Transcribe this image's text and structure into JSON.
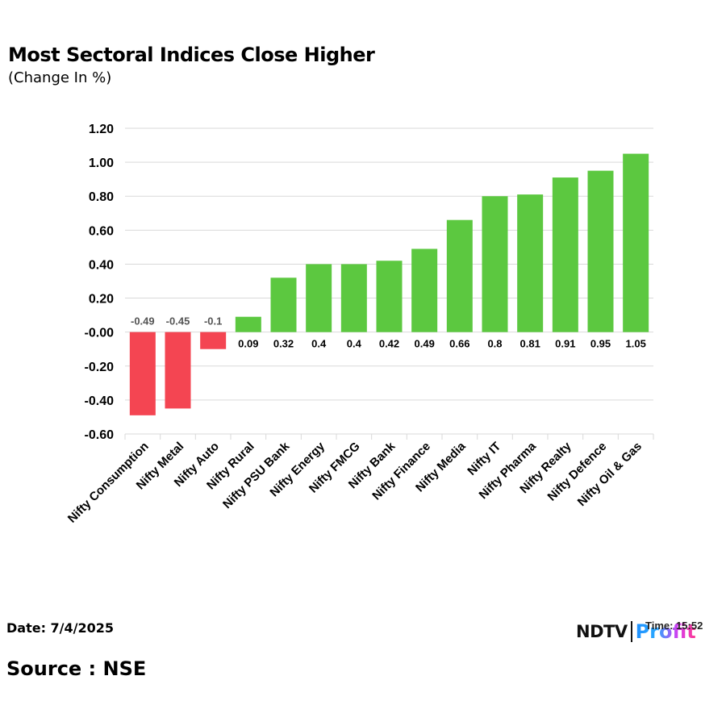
{
  "header": {
    "title": "Most Sectoral Indices Close Higher",
    "subtitle": "(Change In %)"
  },
  "footer": {
    "date": "Date: 7/4/2025",
    "source": "Source : NSE",
    "logo_ndtv": "NDTV",
    "logo_profit": "Profit",
    "logo_time": "Time: 15:52"
  },
  "colors": {
    "positive": "#5cc840",
    "negative": "#f44552",
    "grid": "#d9d9d9",
    "label_dark": "#000000",
    "label_grey": "#555555"
  },
  "chart_data": {
    "type": "bar",
    "categories": [
      "Nifty Consumption",
      "Nifty Metal",
      "Nifty Auto",
      "Nifty Rural",
      "Nifty PSU Bank",
      "Nifty Energy",
      "Nifty FMCG",
      "Nifty Bank",
      "Nifty Finance",
      "Nifty Media",
      "Nifty IT",
      "Nifty Pharma",
      "Nifty Realty",
      "Nifty Defence",
      "Nifty Oil & Gas"
    ],
    "values": [
      -0.49,
      -0.45,
      -0.1,
      0.09,
      0.32,
      0.4,
      0.4,
      0.42,
      0.49,
      0.66,
      0.8,
      0.81,
      0.91,
      0.95,
      1.05
    ],
    "value_labels": [
      "-0.49",
      "-0.45",
      "-0.1",
      "0.09",
      "0.32",
      "0.4",
      "0.4",
      "0.42",
      "0.49",
      "0.66",
      "0.8",
      "0.81",
      "0.91",
      "0.95",
      "1.05"
    ],
    "title": "Most Sectoral Indices Close Higher",
    "subtitle": "(Change In %)",
    "xlabel": "",
    "ylabel": "",
    "ylim": [
      -0.6,
      1.2
    ],
    "yticks": [
      1.2,
      1.0,
      0.8,
      0.6,
      0.4,
      0.2,
      0.0,
      -0.2,
      -0.4,
      -0.6
    ],
    "ytick_labels": [
      "1.20",
      "1.00",
      "0.80",
      "0.60",
      "0.40",
      "0.20",
      "-0.00",
      "-0.20",
      "-0.40",
      "-0.60"
    ],
    "grid": true,
    "legend": "none"
  }
}
